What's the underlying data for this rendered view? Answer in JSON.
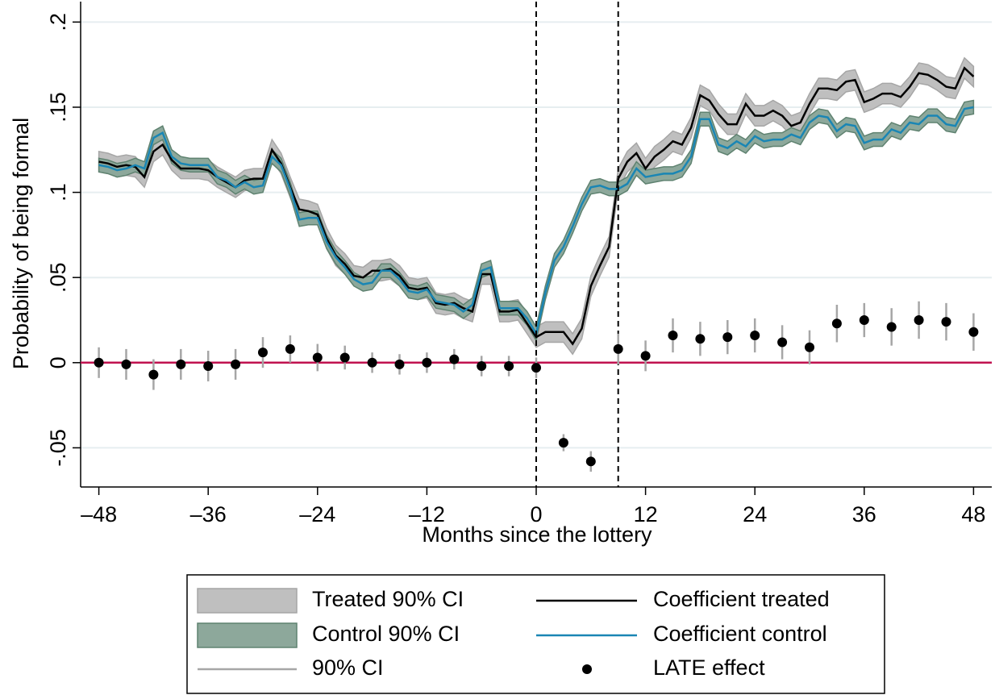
{
  "chart_data": {
    "type": "line",
    "xlabel": "Months since the lottery",
    "ylabel": "Probability of being formal",
    "xlim": [
      -50,
      50
    ],
    "ylim": [
      -0.073,
      0.212
    ],
    "xticks": [
      {
        "value": -48,
        "label": "–48"
      },
      {
        "value": -36,
        "label": "–36"
      },
      {
        "value": -24,
        "label": "–24"
      },
      {
        "value": -12,
        "label": "–12"
      },
      0,
      12,
      24,
      36,
      48
    ],
    "yticks": [
      {
        "value": -0.05,
        "label": "-.05"
      },
      0,
      {
        "value": 0.05,
        "label": ".05"
      },
      {
        "value": 0.1,
        "label": ".1"
      },
      {
        "value": 0.15,
        "label": ".15"
      },
      {
        "value": 0.2,
        "label": ".2"
      }
    ],
    "grid": true,
    "vlines": [
      0,
      9
    ],
    "hline": 0,
    "hline_color": "#c0124f",
    "x": [
      -48,
      -47,
      -46,
      -45,
      -44,
      -43,
      -42,
      -41,
      -40,
      -39,
      -38,
      -37,
      -36,
      -35,
      -34,
      -33,
      -32,
      -31,
      -30,
      -29,
      -28,
      -27,
      -26,
      -25,
      -24,
      -23,
      -22,
      -21,
      -20,
      -19,
      -18,
      -17,
      -16,
      -15,
      -14,
      -13,
      -12,
      -11,
      -10,
      -9,
      -8,
      -7,
      -6,
      -5,
      -4,
      -3,
      -2,
      -1,
      0,
      1,
      2,
      3,
      4,
      5,
      6,
      7,
      8,
      9,
      10,
      11,
      12,
      13,
      14,
      15,
      16,
      17,
      18,
      19,
      20,
      21,
      22,
      23,
      24,
      25,
      26,
      27,
      28,
      29,
      30,
      31,
      32,
      33,
      34,
      35,
      36,
      37,
      38,
      39,
      40,
      41,
      42,
      43,
      44,
      45,
      46,
      47,
      48
    ],
    "series": [
      {
        "name": "Coefficient treated",
        "color": "#000000",
        "ci_name": "Treated 90% CI",
        "ci_color": "#bfbfbf",
        "ci_stroke": "#a6a6a6",
        "ci_halfwidth": 0.006,
        "values": [
          0.118,
          0.117,
          0.115,
          0.116,
          0.115,
          0.109,
          0.124,
          0.128,
          0.119,
          0.114,
          0.114,
          0.114,
          0.113,
          0.109,
          0.106,
          0.103,
          0.107,
          0.108,
          0.108,
          0.125,
          0.117,
          0.103,
          0.09,
          0.089,
          0.087,
          0.073,
          0.063,
          0.058,
          0.051,
          0.05,
          0.054,
          0.054,
          0.055,
          0.051,
          0.044,
          0.043,
          0.044,
          0.035,
          0.034,
          0.035,
          0.032,
          0.03,
          0.052,
          0.052,
          0.03,
          0.03,
          0.031,
          0.023,
          0.015,
          0.018,
          0.018,
          0.018,
          0.011,
          0.02,
          0.045,
          0.057,
          0.068,
          0.108,
          0.118,
          0.123,
          0.114,
          0.121,
          0.125,
          0.13,
          0.128,
          0.138,
          0.157,
          0.154,
          0.146,
          0.14,
          0.14,
          0.152,
          0.145,
          0.145,
          0.148,
          0.145,
          0.139,
          0.141,
          0.152,
          0.161,
          0.161,
          0.16,
          0.165,
          0.166,
          0.153,
          0.155,
          0.158,
          0.158,
          0.156,
          0.162,
          0.17,
          0.169,
          0.166,
          0.162,
          0.161,
          0.173,
          0.168
        ]
      },
      {
        "name": "Coefficient control",
        "color": "#1a86b4",
        "ci_name": "Control 90% CI",
        "ci_color": "#8da89b",
        "ci_stroke": "#5f8270",
        "ci_halfwidth": 0.004,
        "values": [
          0.116,
          0.115,
          0.113,
          0.114,
          0.116,
          0.114,
          0.132,
          0.135,
          0.121,
          0.117,
          0.116,
          0.116,
          0.116,
          0.109,
          0.107,
          0.103,
          0.106,
          0.103,
          0.104,
          0.121,
          0.116,
          0.102,
          0.084,
          0.085,
          0.085,
          0.071,
          0.062,
          0.056,
          0.049,
          0.046,
          0.047,
          0.054,
          0.054,
          0.049,
          0.042,
          0.041,
          0.043,
          0.036,
          0.035,
          0.034,
          0.03,
          0.034,
          0.054,
          0.056,
          0.032,
          0.032,
          0.032,
          0.026,
          0.017,
          0.041,
          0.06,
          0.068,
          0.08,
          0.093,
          0.103,
          0.104,
          0.102,
          0.102,
          0.105,
          0.114,
          0.109,
          0.11,
          0.111,
          0.111,
          0.113,
          0.121,
          0.143,
          0.143,
          0.128,
          0.126,
          0.13,
          0.127,
          0.133,
          0.13,
          0.131,
          0.131,
          0.134,
          0.132,
          0.141,
          0.145,
          0.144,
          0.136,
          0.14,
          0.139,
          0.129,
          0.131,
          0.131,
          0.137,
          0.135,
          0.141,
          0.14,
          0.145,
          0.145,
          0.14,
          0.139,
          0.149,
          0.15
        ]
      }
    ],
    "late": {
      "name": "LATE effect",
      "color": "#000000",
      "ci_name": "90% CI",
      "ci_color": "#a6a6a6",
      "x": [
        -48,
        -45,
        -42,
        -39,
        -36,
        -33,
        -30,
        -27,
        -24,
        -21,
        -18,
        -15,
        -12,
        -9,
        -6,
        -3,
        0,
        3,
        6,
        9,
        12,
        15,
        18,
        21,
        24,
        27,
        30,
        33,
        36,
        39,
        42,
        45,
        48
      ],
      "values": [
        0.0,
        -0.001,
        -0.007,
        -0.001,
        -0.002,
        -0.001,
        0.006,
        0.008,
        0.003,
        0.003,
        0.0,
        -0.001,
        0.0,
        0.002,
        -0.002,
        -0.002,
        -0.003,
        -0.047,
        -0.058,
        0.008,
        0.004,
        0.016,
        0.014,
        0.015,
        0.016,
        0.012,
        0.009,
        0.023,
        0.025,
        0.021,
        0.025,
        0.024,
        0.018
      ],
      "errors": [
        0.009,
        0.009,
        0.009,
        0.009,
        0.009,
        0.009,
        0.009,
        0.008,
        0.008,
        0.007,
        0.006,
        0.006,
        0.006,
        0.006,
        0.006,
        0.006,
        0.006,
        0.005,
        0.006,
        0.009,
        0.009,
        0.01,
        0.01,
        0.01,
        0.01,
        0.01,
        0.01,
        0.011,
        0.01,
        0.011,
        0.011,
        0.011,
        0.011
      ]
    }
  }
}
